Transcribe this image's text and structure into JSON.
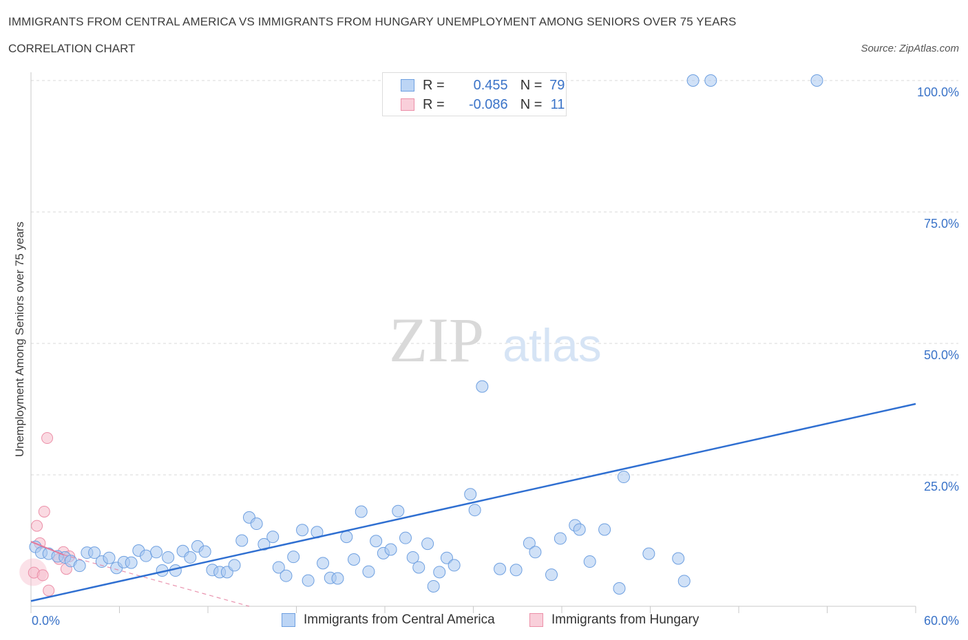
{
  "title": "IMMIGRANTS FROM CENTRAL AMERICA VS IMMIGRANTS FROM HUNGARY UNEMPLOYMENT AMONG SENIORS OVER 75 YEARS",
  "subtitle": "CORRELATION CHART",
  "source": "Source: ZipAtlas.com",
  "watermark": {
    "zip": "ZIP",
    "atlas": "atlas"
  },
  "colors": {
    "blue_fill": "#a9c8f0",
    "blue_stroke": "#6d9fe0",
    "blue_line": "#2f6fd1",
    "pink_fill": "#f6bccb",
    "pink_stroke": "#ec8fa8",
    "pink_line": "#e4789a",
    "tick_label": "#3a73c8"
  },
  "legend": {
    "rows": [
      {
        "r_label": "R =",
        "r_value": "0.455",
        "n_label": "N =",
        "n_value": "79"
      },
      {
        "r_label": "R =",
        "r_value": "-0.086",
        "n_label": "N =",
        "n_value": "11"
      }
    ]
  },
  "bottom_legend": {
    "blue": "Immigrants from Central America",
    "pink": "Immigrants from Hungary"
  },
  "chart_data": {
    "type": "scatter",
    "xlabel": "",
    "ylabel": "Unemployment Among Seniors over 75 years",
    "xlim": [
      0,
      60
    ],
    "ylim": [
      0,
      100
    ],
    "x_tick_labels": [
      "0.0%",
      "60.0%"
    ],
    "y_ticks": [
      25,
      50,
      75,
      100
    ],
    "y_tick_labels": [
      "25.0%",
      "50.0%",
      "75.0%",
      "100.0%"
    ],
    "grid": true,
    "series": [
      {
        "name": "Immigrants from Central America",
        "R": 0.455,
        "N": 79,
        "trend": {
          "x": [
            0,
            60
          ],
          "y": [
            1.0,
            38.5
          ]
        },
        "points": [
          [
            0.3,
            11.3
          ],
          [
            0.7,
            10.2
          ],
          [
            1.2,
            10.0
          ],
          [
            1.8,
            9.5
          ],
          [
            2.3,
            9.3
          ],
          [
            2.7,
            8.6
          ],
          [
            3.3,
            7.7
          ],
          [
            3.8,
            10.2
          ],
          [
            4.3,
            10.2
          ],
          [
            4.8,
            8.5
          ],
          [
            5.3,
            9.2
          ],
          [
            5.8,
            7.3
          ],
          [
            6.3,
            8.4
          ],
          [
            6.8,
            8.3
          ],
          [
            7.3,
            10.6
          ],
          [
            7.8,
            9.6
          ],
          [
            8.5,
            10.3
          ],
          [
            8.9,
            6.8
          ],
          [
            9.3,
            9.3
          ],
          [
            9.8,
            6.8
          ],
          [
            10.3,
            10.5
          ],
          [
            10.8,
            9.3
          ],
          [
            11.3,
            11.4
          ],
          [
            11.8,
            10.4
          ],
          [
            12.3,
            6.9
          ],
          [
            12.8,
            6.5
          ],
          [
            13.3,
            6.5
          ],
          [
            13.8,
            7.8
          ],
          [
            14.3,
            12.5
          ],
          [
            14.8,
            16.9
          ],
          [
            15.3,
            15.7
          ],
          [
            15.8,
            11.8
          ],
          [
            16.4,
            13.2
          ],
          [
            16.8,
            7.4
          ],
          [
            17.3,
            5.8
          ],
          [
            17.8,
            9.4
          ],
          [
            18.4,
            14.5
          ],
          [
            18.8,
            4.9
          ],
          [
            19.4,
            14.1
          ],
          [
            19.8,
            8.2
          ],
          [
            20.3,
            5.4
          ],
          [
            20.8,
            5.3
          ],
          [
            21.4,
            13.2
          ],
          [
            21.9,
            8.9
          ],
          [
            22.4,
            18.0
          ],
          [
            22.9,
            6.6
          ],
          [
            23.4,
            12.4
          ],
          [
            23.9,
            10.1
          ],
          [
            24.4,
            10.8
          ],
          [
            24.9,
            18.1
          ],
          [
            25.4,
            13.0
          ],
          [
            25.9,
            9.3
          ],
          [
            26.3,
            7.4
          ],
          [
            26.9,
            11.9
          ],
          [
            27.3,
            3.8
          ],
          [
            27.7,
            6.5
          ],
          [
            28.2,
            9.2
          ],
          [
            28.7,
            7.8
          ],
          [
            29.8,
            21.3
          ],
          [
            30.1,
            18.3
          ],
          [
            30.6,
            41.8
          ],
          [
            31.8,
            7.1
          ],
          [
            32.9,
            6.9
          ],
          [
            33.8,
            12.0
          ],
          [
            34.2,
            10.3
          ],
          [
            35.3,
            6.0
          ],
          [
            35.9,
            12.9
          ],
          [
            36.9,
            15.4
          ],
          [
            37.2,
            14.6
          ],
          [
            37.9,
            8.5
          ],
          [
            38.9,
            14.6
          ],
          [
            39.9,
            3.4
          ],
          [
            40.2,
            24.6
          ],
          [
            41.9,
            10.0
          ],
          [
            43.9,
            9.1
          ],
          [
            44.3,
            4.8
          ],
          [
            44.9,
            100.0
          ],
          [
            46.1,
            100.0
          ],
          [
            53.3,
            100.0
          ]
        ]
      },
      {
        "name": "Immigrants from Hungary",
        "R": -0.086,
        "N": 11,
        "trend": {
          "x": [
            0,
            2.2
          ],
          "y": [
            12.3,
            9.8
          ]
        },
        "dashed_extension": {
          "x": [
            2.2,
            14.8
          ],
          "y": [
            9.8,
            0.0
          ]
        },
        "points": [
          [
            0.2,
            6.4
          ],
          [
            0.4,
            15.3
          ],
          [
            0.6,
            12.0
          ],
          [
            0.8,
            5.9
          ],
          [
            0.9,
            18.0
          ],
          [
            1.1,
            32.0
          ],
          [
            1.2,
            3.0
          ],
          [
            1.9,
            9.0
          ],
          [
            2.2,
            10.3
          ],
          [
            2.4,
            7.1
          ],
          [
            2.6,
            9.5
          ]
        ]
      }
    ]
  }
}
